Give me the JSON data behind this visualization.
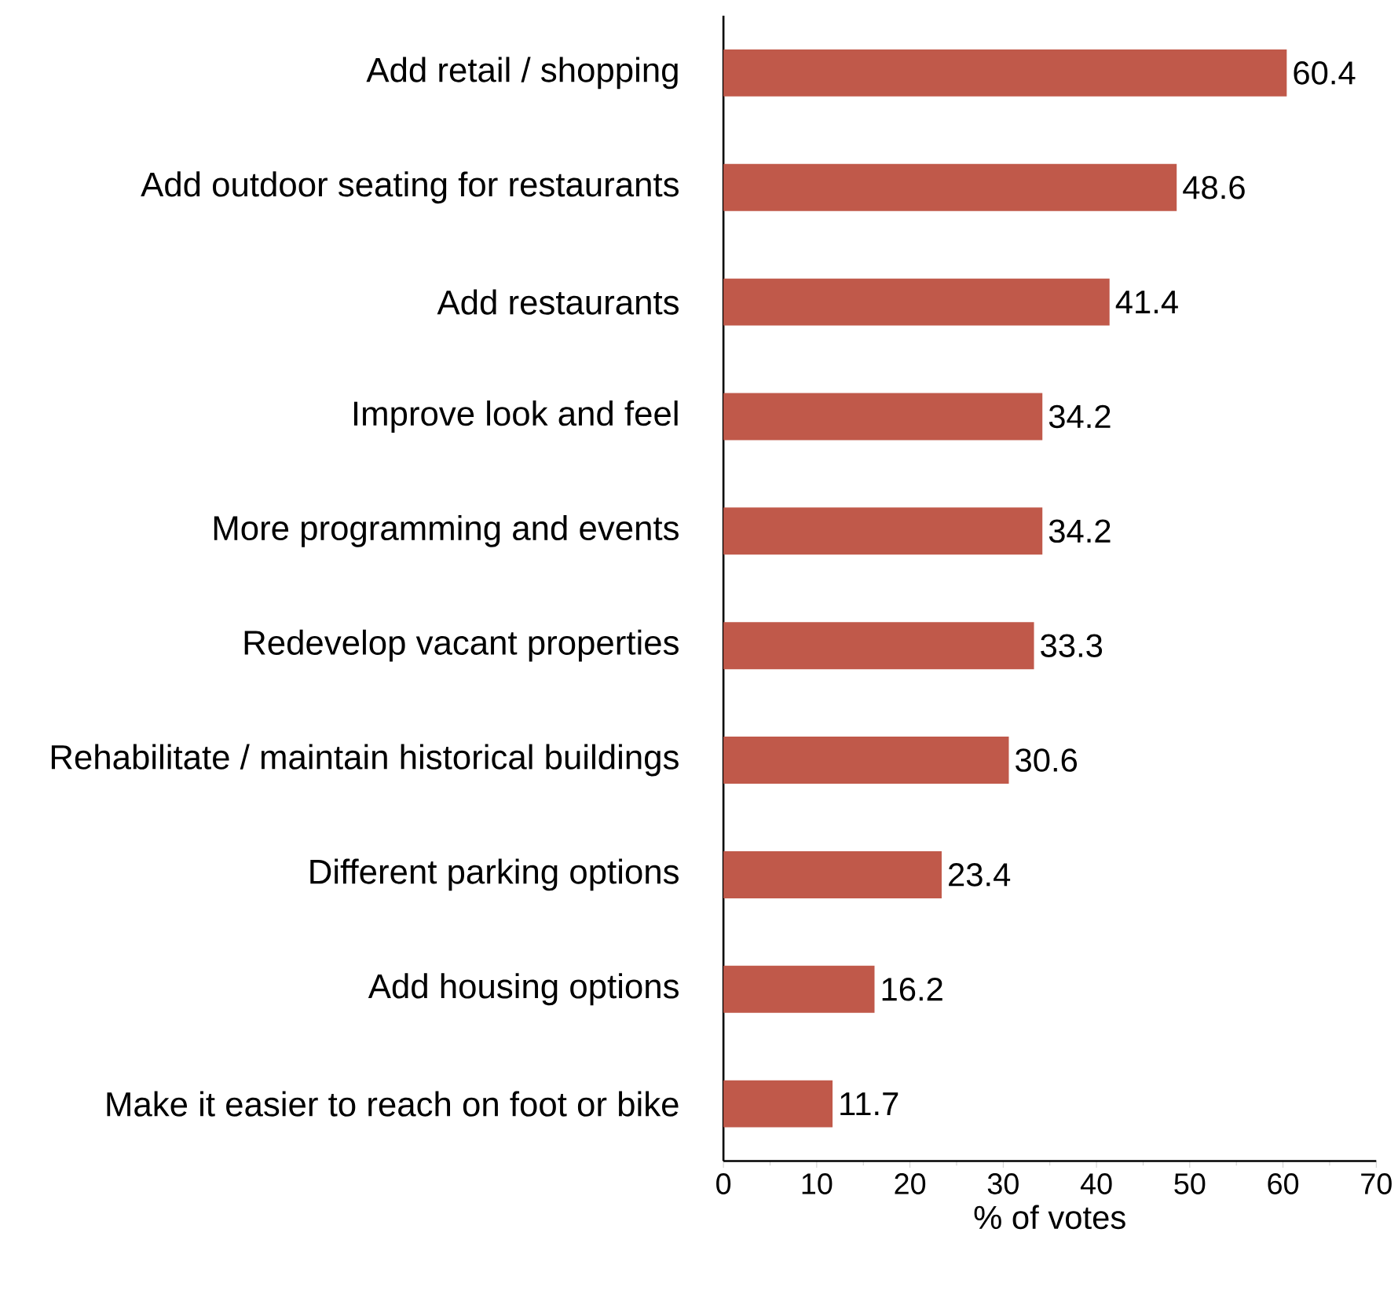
{
  "chart_data": {
    "type": "bar",
    "orientation": "horizontal",
    "xlabel": "% of votes",
    "categories": [
      "Add retail / shopping",
      "Add outdoor seating for restaurants",
      "Add restaurants",
      "Improve look and feel",
      "More programming and events",
      "Redevelop vacant properties",
      "Rehabilitate / maintain historical buildings",
      "Different parking options",
      "Add housing options",
      "Make it easier to reach on foot or bike"
    ],
    "values": [
      60.4,
      48.6,
      41.4,
      34.2,
      34.2,
      33.3,
      30.6,
      23.4,
      16.2,
      11.7
    ],
    "color": "#c0594a",
    "xlim": [
      0,
      70
    ],
    "xticks": [
      0,
      10,
      20,
      30,
      40,
      50,
      60,
      70
    ],
    "data_labels": true
  }
}
